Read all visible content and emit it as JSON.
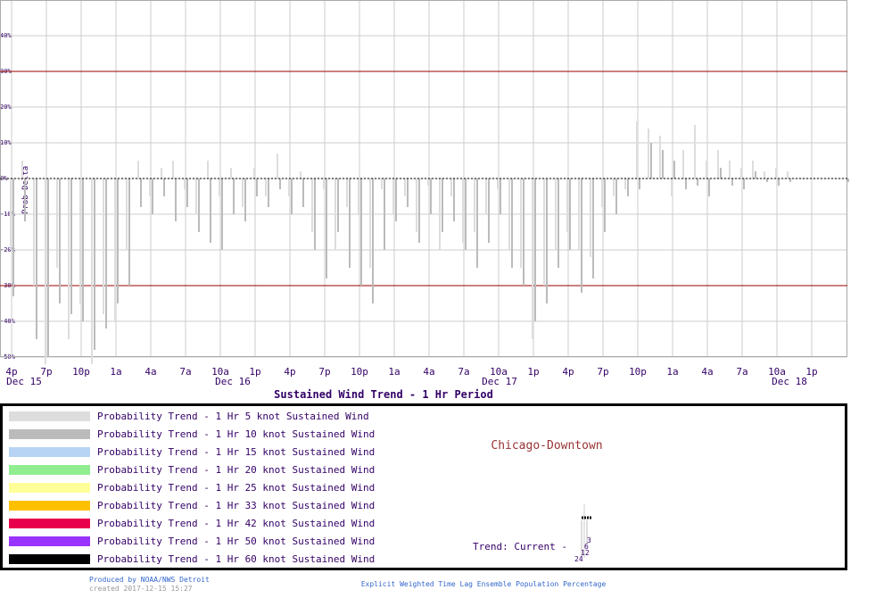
{
  "chart_data": {
    "type": "bar",
    "title": "Sustained Wind Trend -  1 Hr Period",
    "y_label": "Prob Delta",
    "categories": [
      "4p",
      null,
      null,
      "7p",
      null,
      null,
      "10p",
      null,
      null,
      "1a",
      null,
      null,
      "4a",
      null,
      null,
      "7a",
      null,
      null,
      "10a",
      null,
      null,
      "1p",
      null,
      null,
      "4p",
      null,
      null,
      "7p",
      null,
      null,
      "10p",
      null,
      null,
      "1a",
      null,
      null,
      "4a",
      null,
      null,
      "7a",
      null,
      null,
      "10a",
      null,
      null,
      "1p",
      null,
      null,
      "4p",
      null,
      null,
      "7p",
      null,
      null,
      "10p",
      null,
      null,
      "1a",
      null,
      null,
      "4a",
      null,
      null,
      "7a",
      null,
      null,
      "10a",
      null,
      null,
      "1p",
      null,
      null,
      null
    ],
    "dates": [
      "Dec 15",
      null,
      null,
      null,
      null,
      null,
      null,
      null,
      null,
      null,
      null,
      null,
      null,
      null,
      null,
      null,
      null,
      null,
      "Dec 16",
      null,
      null,
      null,
      null,
      null,
      null,
      null,
      null,
      null,
      null,
      null,
      null,
      null,
      null,
      null,
      null,
      null,
      null,
      null,
      null,
      null,
      null,
      "Dec 17",
      null,
      null,
      null,
      null,
      null,
      null,
      null,
      null,
      null,
      null,
      null,
      null,
      null,
      null,
      null,
      null,
      null,
      null,
      null,
      null,
      null,
      null,
      null,
      null,
      "Dec 18",
      null,
      null,
      null,
      null,
      null,
      null
    ],
    "series": [
      {
        "name": "Probability Trend -  1 Hr 5 knot Sustained Wind",
        "color": "#dddddd",
        "values": [
          -20,
          5,
          -30,
          -52,
          -25,
          -45,
          -35,
          -52,
          -38,
          -40,
          -20,
          5,
          -5,
          3,
          5,
          -3,
          -10,
          5,
          -5,
          3,
          -8,
          3,
          -5,
          7,
          -5,
          2,
          -15,
          -3,
          -20,
          -8,
          -10,
          -25,
          -3,
          -10,
          -5,
          -15,
          -2,
          -20,
          -5,
          -18,
          -15,
          -10,
          -3,
          -20,
          -25,
          -45,
          -30,
          -20,
          -15,
          -20,
          -22,
          -8,
          -5,
          -3,
          16,
          14,
          12,
          -5,
          8,
          15,
          5,
          8,
          5,
          3,
          5,
          2,
          3,
          2,
          0,
          0,
          0,
          0,
          0
        ]
      },
      {
        "name": "Probability Trend -  1 Hr 10 knot Sustained Wind",
        "color": "#bbbbbb",
        "values": [
          -33,
          -12,
          -45,
          -50,
          -35,
          -38,
          -40,
          -48,
          -42,
          -35,
          -30,
          -8,
          -10,
          -5,
          -12,
          -8,
          -15,
          -18,
          -20,
          -10,
          -12,
          -5,
          -8,
          -3,
          -10,
          -8,
          -20,
          -28,
          -15,
          -25,
          -30,
          -35,
          -20,
          -12,
          -8,
          -18,
          -10,
          -15,
          -12,
          -20,
          -25,
          -18,
          -10,
          -25,
          -30,
          -40,
          -35,
          -25,
          -20,
          -32,
          -28,
          -15,
          -10,
          -5,
          -3,
          10,
          8,
          5,
          -3,
          -2,
          -5,
          3,
          -2,
          -3,
          2,
          -1,
          -2,
          -1,
          0,
          0,
          0,
          0,
          -1
        ]
      }
    ],
    "legend": [
      {
        "name": "Probability Trend -  1 Hr 5 knot Sustained Wind",
        "color": "#dddddd"
      },
      {
        "name": "Probability Trend -  1 Hr 10 knot Sustained Wind",
        "color": "#bbbbbb"
      },
      {
        "name": "Probability Trend -  1 Hr 15 knot Sustained Wind",
        "color": "#b8d4f4"
      },
      {
        "name": "Probability Trend -  1 Hr 20 knot Sustained Wind",
        "color": "#90ee90"
      },
      {
        "name": "Probability Trend -  1 Hr 25 knot Sustained Wind",
        "color": "#ffff99"
      },
      {
        "name": "Probability Trend -  1 Hr 33 knot Sustained Wind",
        "color": "#ffc000"
      },
      {
        "name": "Probability Trend -  1 Hr 42 knot Sustained Wind",
        "color": "#e8004c"
      },
      {
        "name": "Probability Trend -  1 Hr 50 knot Sustained Wind",
        "color": "#9933ff"
      },
      {
        "name": "Probability Trend -  1 Hr 60 knot Sustained Wind",
        "color": "#000000"
      }
    ],
    "ylim": [
      -50,
      50
    ],
    "yticks": [
      {
        "value": 40,
        "label": "40%"
      },
      {
        "value": 30,
        "label": "30%"
      },
      {
        "value": 20,
        "label": "20%"
      },
      {
        "value": 10,
        "label": "10%"
      },
      {
        "value": 0,
        "label": "0%"
      },
      {
        "value": -10,
        "label": "-10%"
      },
      {
        "value": -20,
        "label": "-20%"
      },
      {
        "value": -30,
        "label": "-30%"
      },
      {
        "value": -40,
        "label": "-40%"
      },
      {
        "value": -50,
        "label": "-50%"
      }
    ],
    "reference_lines": [
      30,
      -30
    ],
    "grid": true,
    "location": "Chicago-Downtown",
    "trend_label": "Trend: Current -",
    "trend_glyph_labels": [
      "3",
      "6",
      "12",
      "24"
    ],
    "credit": "Produced by NOAA/NWS Detroit",
    "created": "created 2017-12-15 15:27",
    "footer": "Explicit Weighted Time Lag Ensemble Population Percentage"
  }
}
